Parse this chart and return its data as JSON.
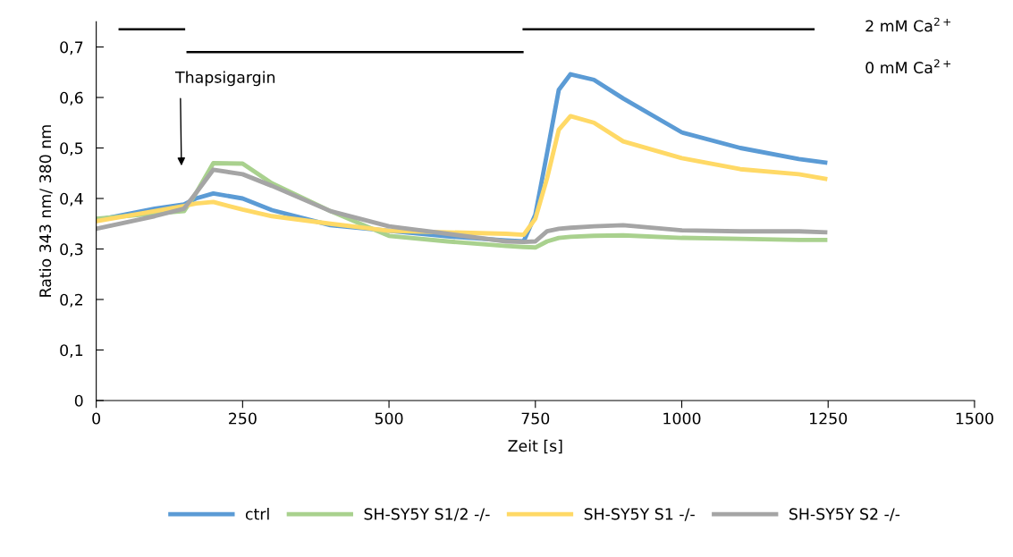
{
  "chart_data": {
    "type": "line",
    "xlabel": "Zeit [s]",
    "ylabel": "Ratio 343 nm/ 380 nm",
    "x": [
      0,
      100,
      150,
      170,
      200,
      250,
      300,
      400,
      500,
      600,
      700,
      730,
      750,
      770,
      790,
      810,
      850,
      900,
      1000,
      1100,
      1200,
      1245
    ],
    "series": [
      {
        "name": "ctrl",
        "color": "#5b9bd5",
        "values": [
          0.357,
          0.38,
          0.388,
          0.4,
          0.41,
          0.4,
          0.377,
          0.347,
          0.336,
          0.325,
          0.317,
          0.315,
          0.368,
          0.49,
          0.615,
          0.646,
          0.635,
          0.598,
          0.531,
          0.5,
          0.478,
          0.471
        ]
      },
      {
        "name": "SH-SY5Y S1/2 -/-",
        "color": "#a9d18e",
        "values": [
          0.36,
          0.37,
          0.375,
          0.41,
          0.47,
          0.469,
          0.43,
          0.375,
          0.326,
          0.315,
          0.306,
          0.304,
          0.303,
          0.315,
          0.322,
          0.324,
          0.326,
          0.327,
          0.322,
          0.32,
          0.318,
          0.318
        ]
      },
      {
        "name": "SH-SY5Y S1 -/-",
        "color": "#ffd966",
        "values": [
          0.355,
          0.375,
          0.385,
          0.39,
          0.393,
          0.378,
          0.365,
          0.35,
          0.336,
          0.333,
          0.33,
          0.328,
          0.36,
          0.44,
          0.536,
          0.563,
          0.55,
          0.513,
          0.48,
          0.458,
          0.448,
          0.439
        ]
      },
      {
        "name": "SH-SY5Y S2 -/-",
        "color": "#a5a5a5",
        "values": [
          0.34,
          0.365,
          0.38,
          0.41,
          0.457,
          0.448,
          0.425,
          0.375,
          0.345,
          0.33,
          0.315,
          0.314,
          0.315,
          0.335,
          0.34,
          0.342,
          0.345,
          0.347,
          0.337,
          0.335,
          0.335,
          0.333
        ]
      },
      {
        "color": "#000000",
        "x": [
          40,
          150
        ],
        "values": [
          0.735,
          0.735
        ]
      },
      {
        "color": "#000000",
        "x": [
          730,
          1225
        ],
        "values": [
          0.735,
          0.735
        ]
      },
      {
        "color": "#000000",
        "x": [
          156,
          728
        ],
        "values": [
          0.69,
          0.69
        ]
      }
    ],
    "xlim": [
      0,
      1500
    ],
    "xticks": [
      0,
      250,
      500,
      750,
      1000,
      1250,
      1500
    ],
    "ylim": [
      0,
      0.75
    ],
    "yticks": [
      0,
      {
        "value": 0.1,
        "label": "0,1"
      },
      {
        "value": 0.2,
        "label": "0,2"
      },
      {
        "value": 0.3,
        "label": "0,3"
      },
      {
        "value": 0.4,
        "label": "0,4"
      },
      {
        "value": 0.5,
        "label": "0,5"
      },
      {
        "value": 0.6,
        "label": "0,6"
      },
      {
        "value": 0.7,
        "label": "0,7"
      }
    ],
    "annotations": [
      "2 mM Ca$^{2+}$",
      "0 mM Ca$^{2+}$",
      "Thapsigargin"
    ],
    "grid": false,
    "legend": "bottom",
    "marker": "none",
    "line_style": "solid"
  }
}
